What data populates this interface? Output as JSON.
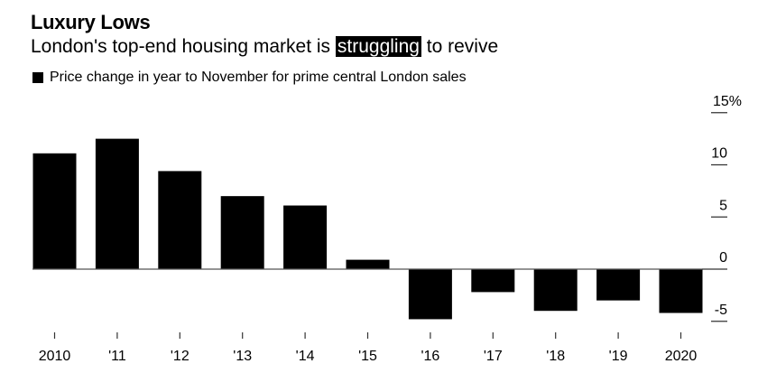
{
  "chart_data": {
    "type": "bar",
    "title": "Luxury Lows",
    "subtitle_parts": [
      "London's top-end housing market is ",
      "struggling",
      " to revive"
    ],
    "legend": [
      {
        "label": "Price change in year to November for prime central London sales",
        "color": "#000000"
      }
    ],
    "legend_position": "top-left",
    "categories": [
      "2010",
      "'11",
      "'12",
      "'13",
      "'14",
      "'15",
      "'16",
      "'17",
      "'18",
      "'19",
      "2020"
    ],
    "series": [
      {
        "name": "Price change in year to November for prime central London sales",
        "color": "#000000",
        "values": [
          11.1,
          12.5,
          9.4,
          7.0,
          6.1,
          0.9,
          -4.8,
          -2.2,
          -4.0,
          -3.0,
          -4.2
        ]
      }
    ],
    "xlabel": "",
    "ylabel": "",
    "ylim": [
      -6,
      15
    ],
    "yticks": [
      15,
      10,
      5,
      0,
      -5
    ],
    "ytick_labels": [
      "15%",
      "10",
      "5",
      "0",
      "-5"
    ],
    "y_axis_side": "right",
    "grid": false
  }
}
